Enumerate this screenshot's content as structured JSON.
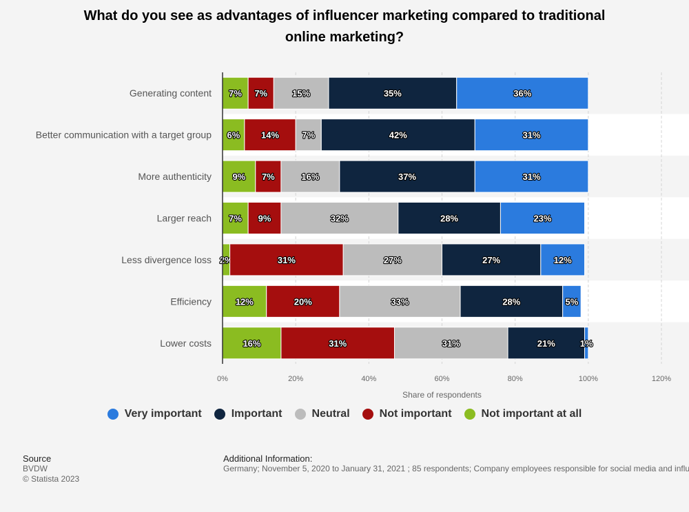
{
  "chart_data": {
    "type": "bar",
    "orientation": "horizontal",
    "stacked": true,
    "title": "What do you see as advantages of influencer marketing compared to traditional online marketing?",
    "title_lines": [
      "What do you see as advantages of influencer marketing compared to traditional",
      "online marketing?"
    ],
    "xlabel": "Share of respondents",
    "xlim": [
      0,
      120
    ],
    "xticks": [
      0,
      20,
      40,
      60,
      80,
      100,
      120
    ],
    "xtick_labels": [
      "0%",
      "20%",
      "40%",
      "60%",
      "80%",
      "100%",
      "120%"
    ],
    "categories": [
      "Generating content",
      "Better communication with a target group",
      "More authenticity",
      "Larger reach",
      "Less divergence loss",
      "Efficiency",
      "Lower costs"
    ],
    "series": [
      {
        "name": "Not important at all",
        "color": "#8bbc21",
        "values": [
          7,
          6,
          9,
          7,
          2,
          12,
          16
        ]
      },
      {
        "name": "Not important",
        "color": "#a50e0e",
        "values": [
          7,
          14,
          7,
          9,
          31,
          20,
          31
        ]
      },
      {
        "name": "Neutral",
        "color": "#bcbcbc",
        "values": [
          15,
          7,
          16,
          32,
          27,
          33,
          31
        ]
      },
      {
        "name": "Important",
        "color": "#0f253f",
        "values": [
          35,
          42,
          37,
          28,
          27,
          28,
          21
        ]
      },
      {
        "name": "Very important",
        "color": "#2b7bde",
        "values": [
          36,
          31,
          31,
          23,
          12,
          5,
          1
        ]
      }
    ],
    "legend_order": [
      "Very important",
      "Important",
      "Neutral",
      "Not important",
      "Not important at all"
    ],
    "legend_position": "bottom",
    "grid": true
  },
  "legend": [
    {
      "label": "Very important",
      "color": "#2b7bde"
    },
    {
      "label": "Important",
      "color": "#0f253f"
    },
    {
      "label": "Neutral",
      "color": "#bcbcbc"
    },
    {
      "label": "Not important",
      "color": "#a50e0e"
    },
    {
      "label": "Not important at all",
      "color": "#8bbc21"
    }
  ],
  "footer": {
    "source_title": "Source",
    "source_name": "BVDW",
    "copyright": "© Statista 2023",
    "info_title": "Additional Information:",
    "info_text": "Germany; November 5, 2020 to January 31, 2021 ; 85 respondents; Company employees responsible for social media and influencer marketing"
  }
}
